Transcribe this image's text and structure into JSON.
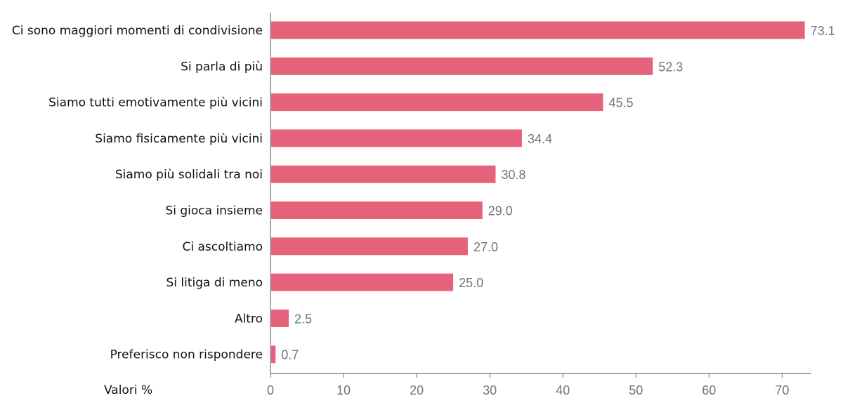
{
  "chart_data": {
    "type": "bar",
    "orientation": "horizontal",
    "categories": [
      "Ci sono maggiori momenti di condivisione",
      "Si parla di più",
      "Siamo tutti emotivamente più vicini",
      "Siamo fisicamente più vicini",
      "Siamo più solidali tra noi",
      "Si gioca insieme",
      "Ci ascoltiamo",
      "Si litiga di meno",
      "Altro",
      "Preferisco non rispondere"
    ],
    "values": [
      73.1,
      52.3,
      45.5,
      34.4,
      30.8,
      29.0,
      27.0,
      25.0,
      2.5,
      0.7
    ],
    "value_labels": [
      "73.1",
      "52.3",
      "45.5",
      "34.4",
      "30.8",
      "29.0",
      "27.0",
      "25.0",
      "2.5",
      "0.7"
    ],
    "xticks": [
      "0",
      "10",
      "20",
      "30",
      "40",
      "50",
      "60",
      "70"
    ],
    "xlim": [
      0,
      74
    ],
    "xlabel": "Valori %",
    "bar_color": "#e4637b",
    "grid": false
  }
}
